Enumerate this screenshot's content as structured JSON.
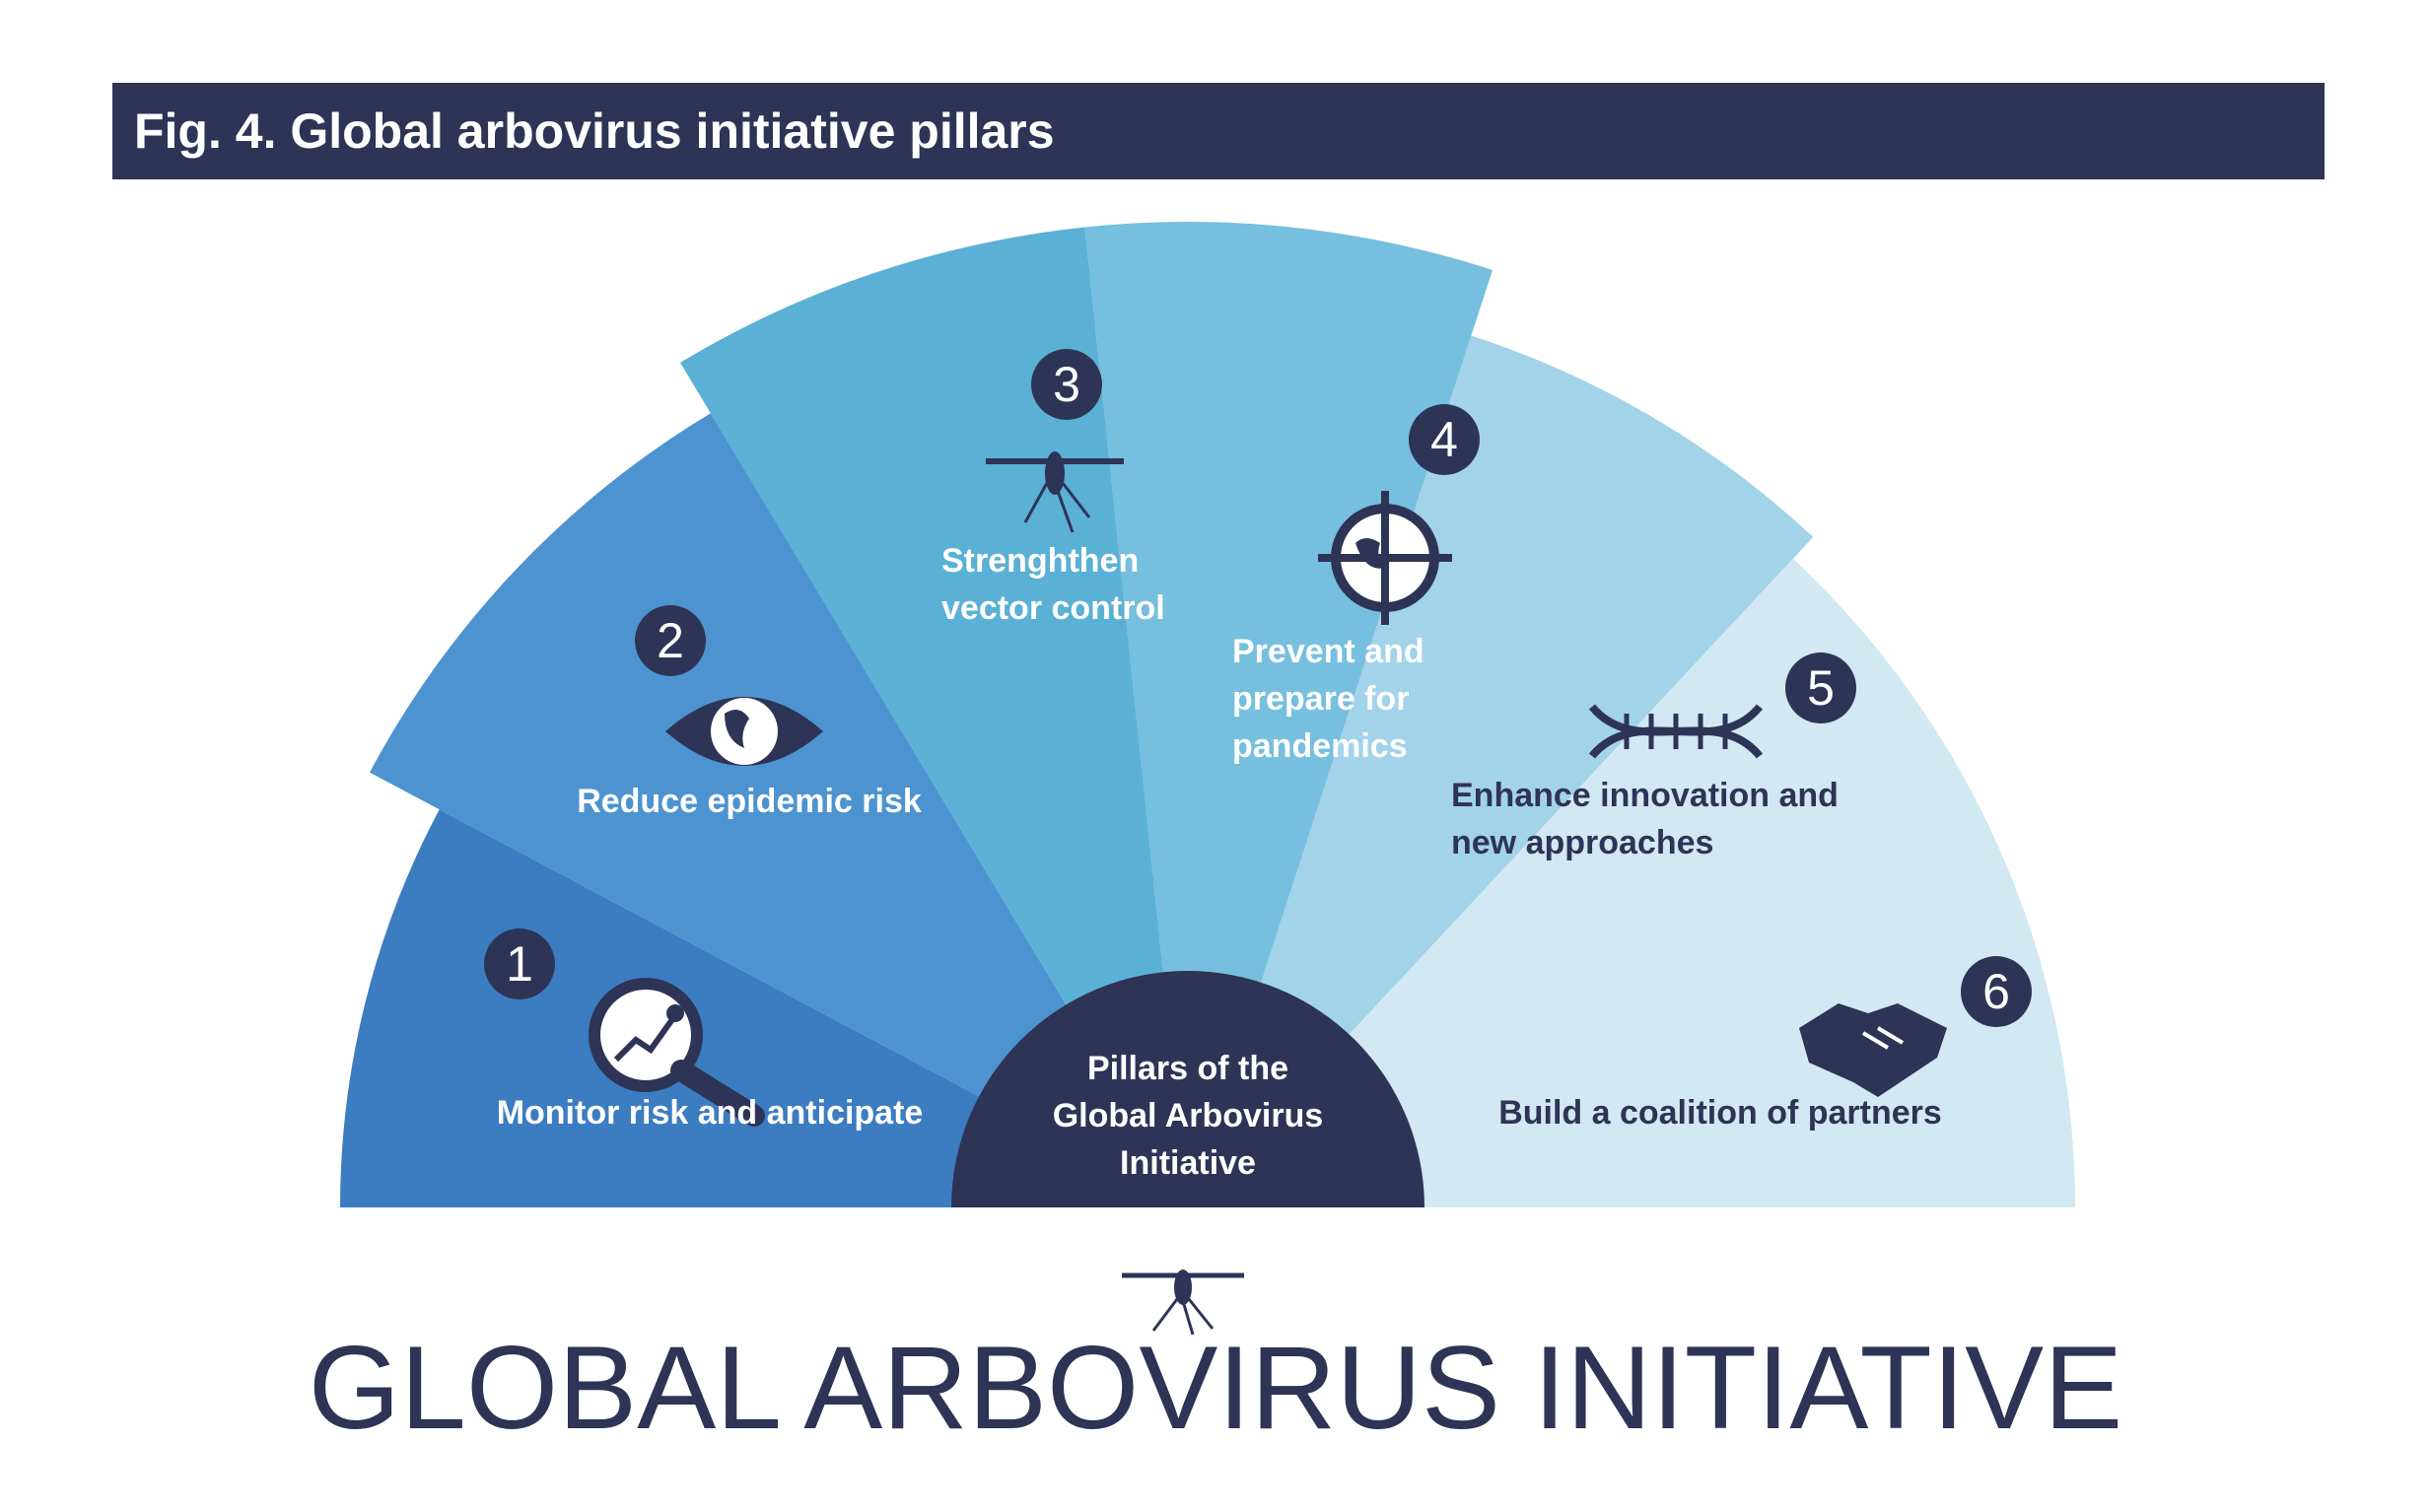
{
  "figure_title": "Fig. 4. Global arbovirus initiative pillars",
  "center": {
    "lines": [
      "Pillars of the",
      "Global Arbovirus",
      "Initiative"
    ]
  },
  "pillars": [
    {
      "number": "1",
      "lines": [
        "Monitor risk and anticipate"
      ],
      "icon": "magnifier-chart-icon",
      "color": "#3c7cc0"
    },
    {
      "number": "2",
      "lines": [
        "Reduce epidemic risk"
      ],
      "icon": "eye-globe-icon",
      "color": "#4d93d0"
    },
    {
      "number": "3",
      "lines": [
        "Strenghthen",
        "vector control"
      ],
      "icon": "mosquito-icon",
      "color": "#5bb0d6"
    },
    {
      "number": "4",
      "lines": [
        "Prevent and",
        "prepare for",
        "pandemics"
      ],
      "icon": "target-globe-icon",
      "color": "#76bfde"
    },
    {
      "number": "5",
      "lines": [
        "Enhance innovation and",
        "new approaches"
      ],
      "icon": "dna-icon",
      "color": "#a3d3e8"
    },
    {
      "number": "6",
      "lines": [
        "Build a coalition of partners"
      ],
      "icon": "handshake-icon",
      "color": "#d2e8f3"
    }
  ],
  "logo": {
    "text": "GLOBAL ARBOVIRUS INITIATIVE",
    "icon": "mosquito-logo-icon"
  },
  "colors": {
    "navy": "#2e3455",
    "white": "#ffffff"
  }
}
